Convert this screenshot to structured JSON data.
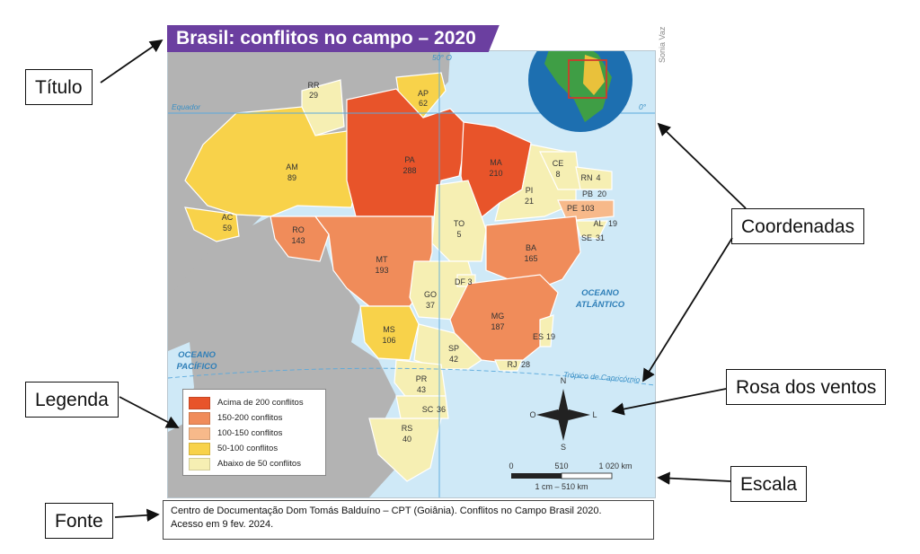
{
  "title": "Brasil: conflitos no campo – 2020",
  "credit": "Sonia Vaz",
  "callouts": {
    "titulo": "Título",
    "coordenadas": "Coordenadas",
    "legenda": "Legenda",
    "rosa": "Rosa dos ventos",
    "escala": "Escala",
    "fonte": "Fonte"
  },
  "lines": {
    "meridian": "50° O",
    "equator_name": "Equador",
    "equator_deg": "0°",
    "tropic": "Trópico de Capricórnio"
  },
  "oceans": {
    "atlantic_1": "OCEANO",
    "atlantic_2": "ATLÂNTICO",
    "pacific_1": "OCEANO",
    "pacific_2": "PACÍFICO"
  },
  "compass": {
    "n": "N",
    "s": "S",
    "l": "L",
    "o": "O"
  },
  "scale": {
    "zero": "0",
    "mid": "510",
    "max": "1 020 km",
    "ratio": "1 cm – 510 km"
  },
  "legend": [
    {
      "label": "Acima de 200 conflitos",
      "color": "#e8542a"
    },
    {
      "label": "150-200 conflitos",
      "color": "#f08c5a"
    },
    {
      "label": "100-150 conflitos",
      "color": "#f7b98a"
    },
    {
      "label": "50-100 conflitos",
      "color": "#f8d24a"
    },
    {
      "label": "Abaixo de 50 conflitos",
      "color": "#f6efb3"
    }
  ],
  "states": {
    "RR": {
      "code": "RR",
      "value": "29"
    },
    "AP": {
      "code": "AP",
      "value": "62"
    },
    "AM": {
      "code": "AM",
      "value": "89"
    },
    "PA": {
      "code": "PA",
      "value": "288"
    },
    "MA": {
      "code": "MA",
      "value": "210"
    },
    "CE": {
      "code": "CE",
      "value": "8"
    },
    "RN": {
      "code": "RN",
      "value": "4"
    },
    "PB": {
      "code": "PB",
      "value": "20"
    },
    "PE": {
      "code": "PE",
      "value": "103"
    },
    "AL": {
      "code": "AL",
      "value": "19"
    },
    "SE": {
      "code": "SE",
      "value": "31"
    },
    "PI": {
      "code": "PI",
      "value": "21"
    },
    "AC": {
      "code": "AC",
      "value": "59"
    },
    "RO": {
      "code": "RO",
      "value": "143"
    },
    "TO": {
      "code": "TO",
      "value": "5"
    },
    "BA": {
      "code": "BA",
      "value": "165"
    },
    "MT": {
      "code": "MT",
      "value": "193"
    },
    "DF": {
      "code": "DF",
      "value": "3"
    },
    "GO": {
      "code": "GO",
      "value": "37"
    },
    "MG": {
      "code": "MG",
      "value": "187"
    },
    "MS": {
      "code": "MS",
      "value": "106"
    },
    "ES": {
      "code": "ES",
      "value": "19"
    },
    "SP": {
      "code": "SP",
      "value": "42"
    },
    "RJ": {
      "code": "RJ",
      "value": "28"
    },
    "PR": {
      "code": "PR",
      "value": "43"
    },
    "SC": {
      "code": "SC",
      "value": "36"
    },
    "RS": {
      "code": "RS",
      "value": "40"
    }
  },
  "source_line1": "Centro de Documentação Dom Tomás Balduíno – CPT (Goiânia). Conflitos no Campo Brasil 2020.",
  "source_line2": "Acesso em 9 fev. 2024."
}
